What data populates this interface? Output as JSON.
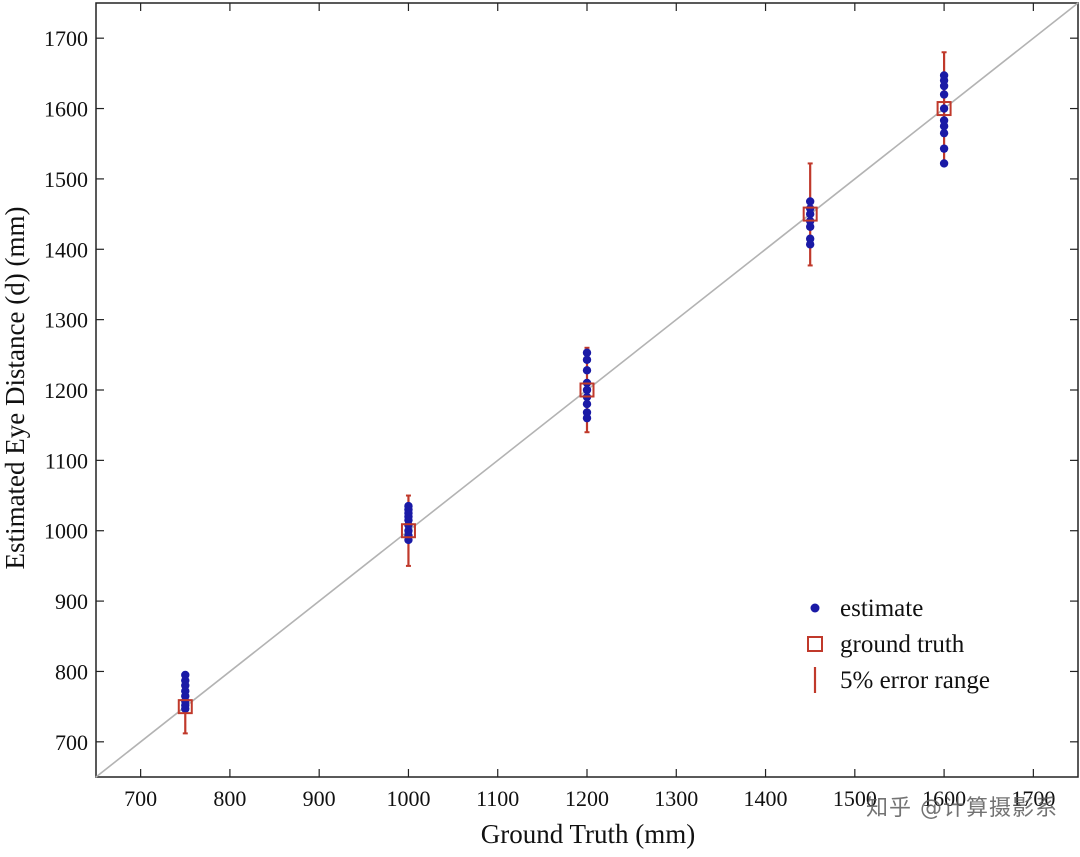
{
  "chart_data": {
    "type": "scatter",
    "xlabel": "Ground Truth (mm)",
    "ylabel": "Estimated Eye Distance (d) (mm)",
    "xlim": [
      650,
      1750
    ],
    "ylim": [
      650,
      1750
    ],
    "x_ticks": [
      700,
      800,
      900,
      1000,
      1100,
      1200,
      1300,
      1400,
      1500,
      1600,
      1700
    ],
    "y_ticks": [
      700,
      800,
      900,
      1000,
      1100,
      1200,
      1300,
      1400,
      1500,
      1600,
      1700
    ],
    "grid": false,
    "reference_line": {
      "slope": 1,
      "intercept": 0,
      "color": "#b3b3b3"
    },
    "legend_position": "bottom-right",
    "series": [
      {
        "name": "estimate",
        "kind": "points",
        "color": "#1a1aa6",
        "points": [
          {
            "x": 750,
            "y": 795
          },
          {
            "x": 750,
            "y": 787
          },
          {
            "x": 750,
            "y": 780
          },
          {
            "x": 750,
            "y": 772
          },
          {
            "x": 750,
            "y": 765
          },
          {
            "x": 750,
            "y": 758
          },
          {
            "x": 750,
            "y": 752
          },
          {
            "x": 750,
            "y": 747
          },
          {
            "x": 1000,
            "y": 1035
          },
          {
            "x": 1000,
            "y": 1030
          },
          {
            "x": 1000,
            "y": 1025
          },
          {
            "x": 1000,
            "y": 1020
          },
          {
            "x": 1000,
            "y": 1015
          },
          {
            "x": 1000,
            "y": 1008
          },
          {
            "x": 1000,
            "y": 1000
          },
          {
            "x": 1000,
            "y": 993
          },
          {
            "x": 1000,
            "y": 987
          },
          {
            "x": 1200,
            "y": 1253
          },
          {
            "x": 1200,
            "y": 1243
          },
          {
            "x": 1200,
            "y": 1228
          },
          {
            "x": 1200,
            "y": 1210
          },
          {
            "x": 1200,
            "y": 1200
          },
          {
            "x": 1200,
            "y": 1190
          },
          {
            "x": 1200,
            "y": 1180
          },
          {
            "x": 1200,
            "y": 1168
          },
          {
            "x": 1200,
            "y": 1160
          },
          {
            "x": 1450,
            "y": 1468
          },
          {
            "x": 1450,
            "y": 1458
          },
          {
            "x": 1450,
            "y": 1450
          },
          {
            "x": 1450,
            "y": 1440
          },
          {
            "x": 1450,
            "y": 1432
          },
          {
            "x": 1450,
            "y": 1415
          },
          {
            "x": 1450,
            "y": 1407
          },
          {
            "x": 1600,
            "y": 1647
          },
          {
            "x": 1600,
            "y": 1640
          },
          {
            "x": 1600,
            "y": 1632
          },
          {
            "x": 1600,
            "y": 1620
          },
          {
            "x": 1600,
            "y": 1600
          },
          {
            "x": 1600,
            "y": 1583
          },
          {
            "x": 1600,
            "y": 1575
          },
          {
            "x": 1600,
            "y": 1565
          },
          {
            "x": 1600,
            "y": 1543
          },
          {
            "x": 1600,
            "y": 1522
          }
        ]
      },
      {
        "name": "ground truth",
        "kind": "squares",
        "color": "#c0392b",
        "points": [
          {
            "x": 750,
            "y": 750
          },
          {
            "x": 1000,
            "y": 1000
          },
          {
            "x": 1200,
            "y": 1200
          },
          {
            "x": 1450,
            "y": 1450
          },
          {
            "x": 1600,
            "y": 1600
          }
        ]
      },
      {
        "name": "5% error range",
        "kind": "error_bars",
        "color": "#c0392b",
        "bars": [
          {
            "x": 750,
            "low": 712,
            "high": 788
          },
          {
            "x": 1000,
            "low": 950,
            "high": 1050
          },
          {
            "x": 1200,
            "low": 1140,
            "high": 1260
          },
          {
            "x": 1450,
            "low": 1377,
            "high": 1522
          },
          {
            "x": 1600,
            "low": 1520,
            "high": 1680
          }
        ]
      }
    ]
  },
  "watermark": "知乎 @计算摄影系"
}
